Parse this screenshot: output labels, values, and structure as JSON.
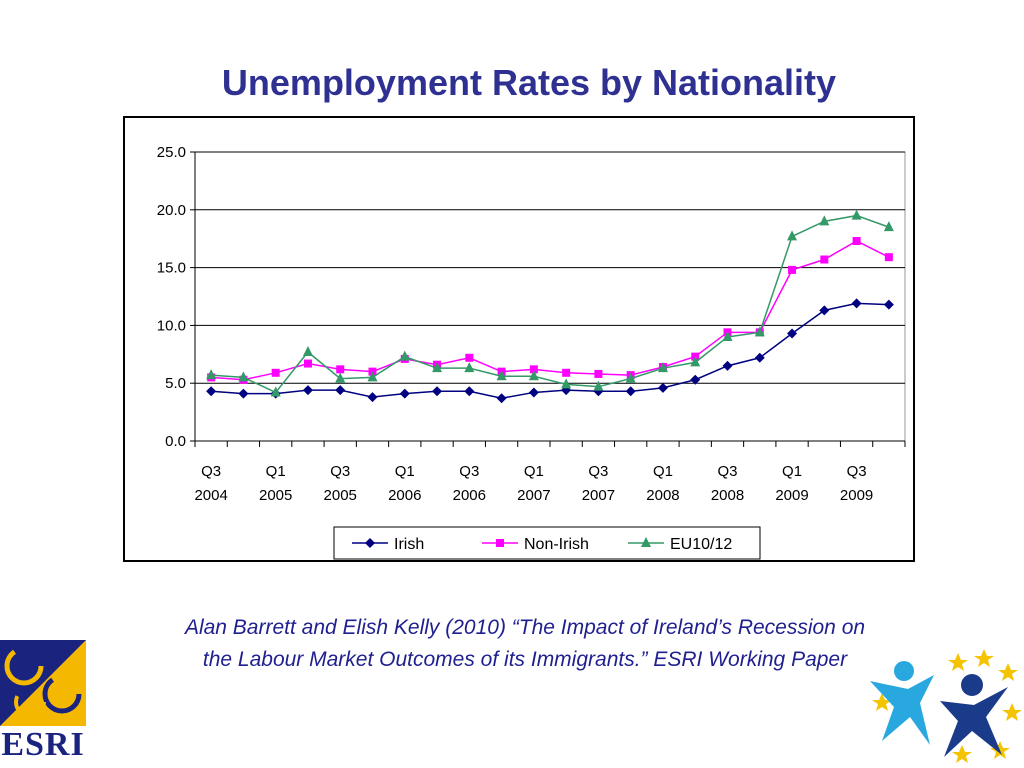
{
  "slide": {
    "title": "Unemployment Rates by Nationality",
    "caption_line1": "Alan Barrett and Elish Kelly (2010) “The Impact of Ireland’s Recession on",
    "caption_line2": "the Labour Market Outcomes of its Immigrants.” ESRI Working Paper",
    "logo_text": "ESRI"
  },
  "colors": {
    "title": "#2e3192",
    "caption": "#1f1f8f",
    "irish": "#000080",
    "non_irish": "#ff00ff",
    "eu": "#339966"
  },
  "chart_data": {
    "type": "line",
    "title": "",
    "xlabel": "",
    "ylabel": "",
    "ylim": [
      0,
      25
    ],
    "yticks": [
      "0.0",
      "5.0",
      "10.0",
      "15.0",
      "20.0",
      "25.0"
    ],
    "grid": "horizontal",
    "legend_position": "bottom",
    "x_tick_labels": [
      {
        "q": "Q3",
        "y": "2004"
      },
      {
        "q": "Q1",
        "y": "2005"
      },
      {
        "q": "Q3",
        "y": "2005"
      },
      {
        "q": "Q1",
        "y": "2006"
      },
      {
        "q": "Q3",
        "y": "2006"
      },
      {
        "q": "Q1",
        "y": "2007"
      },
      {
        "q": "Q3",
        "y": "2007"
      },
      {
        "q": "Q1",
        "y": "2008"
      },
      {
        "q": "Q3",
        "y": "2008"
      },
      {
        "q": "Q1",
        "y": "2009"
      },
      {
        "q": "Q3",
        "y": "2009"
      }
    ],
    "x": [
      "Q3 2004",
      "Q4 2004",
      "Q1 2005",
      "Q2 2005",
      "Q3 2005",
      "Q4 2005",
      "Q1 2006",
      "Q2 2006",
      "Q3 2006",
      "Q4 2006",
      "Q1 2007",
      "Q2 2007",
      "Q3 2007",
      "Q4 2007",
      "Q1 2008",
      "Q2 2008",
      "Q3 2008",
      "Q4 2008",
      "Q1 2009",
      "Q2 2009",
      "Q3 2009",
      "Q4 2009"
    ],
    "series": [
      {
        "name": "Irish",
        "marker": "diamond",
        "color": "#000080",
        "values": [
          4.3,
          4.1,
          4.1,
          4.4,
          4.4,
          3.8,
          4.1,
          4.3,
          4.3,
          3.7,
          4.2,
          4.4,
          4.3,
          4.3,
          4.6,
          5.3,
          6.5,
          7.2,
          9.3,
          11.3,
          11.9,
          11.8
        ]
      },
      {
        "name": "Non-Irish",
        "marker": "square",
        "color": "#ff00ff",
        "values": [
          5.5,
          5.3,
          5.9,
          6.7,
          6.2,
          6.0,
          7.1,
          6.6,
          7.2,
          6.0,
          6.2,
          5.9,
          5.8,
          5.7,
          6.4,
          7.3,
          9.4,
          9.4,
          14.8,
          15.7,
          17.3,
          15.9
        ]
      },
      {
        "name": "EU10/12",
        "marker": "triangle",
        "color": "#339966",
        "values": [
          5.7,
          5.5,
          4.2,
          7.7,
          5.4,
          5.5,
          7.3,
          6.3,
          6.3,
          5.6,
          5.6,
          4.9,
          4.7,
          5.4,
          6.3,
          6.8,
          9.0,
          9.4,
          17.7,
          19.0,
          19.5,
          18.5
        ]
      }
    ]
  }
}
